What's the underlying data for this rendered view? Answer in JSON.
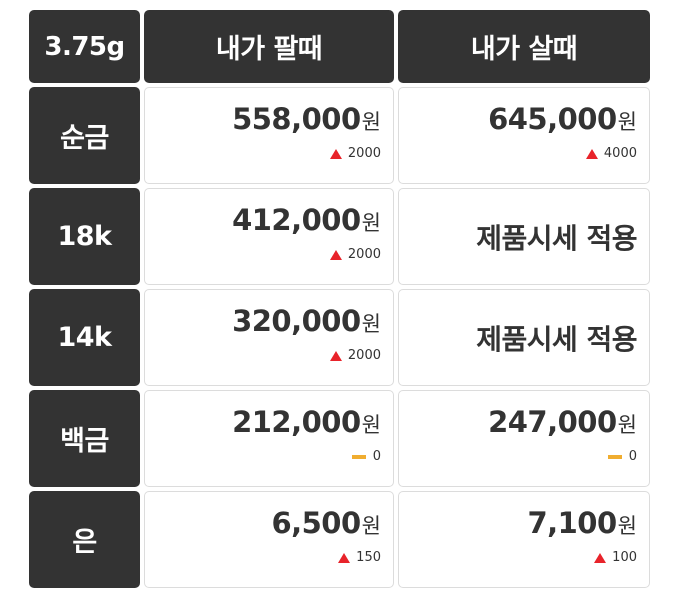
{
  "header": {
    "weight": "3.75g",
    "sell_label": "내가 팔때",
    "buy_label": "내가 살때"
  },
  "rows": [
    {
      "metal": "순금",
      "sell": {
        "price": "558,000",
        "unit": "원",
        "change": "2000",
        "trend": "up"
      },
      "buy": {
        "price": "645,000",
        "unit": "원",
        "change": "4000",
        "trend": "up"
      }
    },
    {
      "metal": "18k",
      "sell": {
        "price": "412,000",
        "unit": "원",
        "change": "2000",
        "trend": "up"
      },
      "buy": {
        "text": "제품시세 적용"
      }
    },
    {
      "metal": "14k",
      "sell": {
        "price": "320,000",
        "unit": "원",
        "change": "2000",
        "trend": "up"
      },
      "buy": {
        "text": "제품시세 적용"
      }
    },
    {
      "metal": "백금",
      "sell": {
        "price": "212,000",
        "unit": "원",
        "change": "0",
        "trend": "flat"
      },
      "buy": {
        "price": "247,000",
        "unit": "원",
        "change": "0",
        "trend": "flat"
      }
    },
    {
      "metal": "은",
      "sell": {
        "price": "6,500",
        "unit": "원",
        "change": "150",
        "trend": "up"
      },
      "buy": {
        "price": "7,100",
        "unit": "원",
        "change": "100",
        "trend": "up"
      }
    }
  ],
  "colors": {
    "header_bg": "#333333",
    "up": "#e8232a",
    "flat": "#f0ad30"
  },
  "icons": {
    "up": "triangle-up-icon",
    "flat": "flat-bar-icon"
  }
}
